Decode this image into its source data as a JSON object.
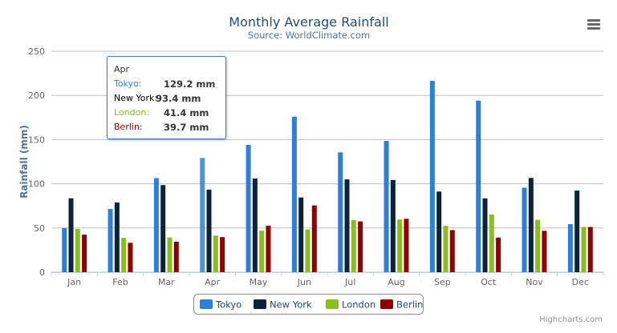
{
  "chart_data": {
    "type": "bar",
    "title": "Monthly Average Rainfall",
    "subtitle": "Source: WorldClimate.com",
    "xlabel": "",
    "ylabel": "Rainfall (mm)",
    "ylim": [
      0,
      250
    ],
    "yticks": [
      "0",
      "50",
      "100",
      "150",
      "200",
      "250"
    ],
    "categories": [
      "Jan",
      "Feb",
      "Mar",
      "Apr",
      "May",
      "Jun",
      "Jul",
      "Aug",
      "Sep",
      "Oct",
      "Nov",
      "Dec"
    ],
    "grid": true,
    "legend_position": "bottom",
    "series": [
      {
        "name": "Tokyo",
        "color": "#2f7ed8",
        "values": [
          49.9,
          71.5,
          106.4,
          129.2,
          144.0,
          176.0,
          135.6,
          148.5,
          216.4,
          194.1,
          95.6,
          54.4
        ]
      },
      {
        "name": "New York",
        "color": "#0d233a",
        "values": [
          83.6,
          78.8,
          98.5,
          93.4,
          106.0,
          84.5,
          105.0,
          104.3,
          91.2,
          83.5,
          106.6,
          92.3
        ]
      },
      {
        "name": "London",
        "color": "#8bbc21",
        "values": [
          48.9,
          38.8,
          39.3,
          41.4,
          47.0,
          48.3,
          59.0,
          59.6,
          52.4,
          65.2,
          59.3,
          51.2
        ]
      },
      {
        "name": "Berlin",
        "color": "#910000",
        "values": [
          42.4,
          33.2,
          34.5,
          39.7,
          52.6,
          75.5,
          57.4,
          60.4,
          47.6,
          39.1,
          46.8,
          51.1
        ]
      }
    ]
  },
  "tooltip": {
    "header": "Apr",
    "rows": [
      {
        "name": "Tokyo:",
        "value": "129.2 mm",
        "color": "#2f7ed8"
      },
      {
        "name": "New York:",
        "value": "93.4 mm",
        "color": "#000000"
      },
      {
        "name": "London:",
        "value": "41.4 mm",
        "color": "#8bbc21"
      },
      {
        "name": "Berlin:",
        "value": "39.7 mm",
        "color": "#910000"
      }
    ]
  },
  "credits": "Highcharts.com",
  "menu_icon": "hamburger-menu-icon"
}
